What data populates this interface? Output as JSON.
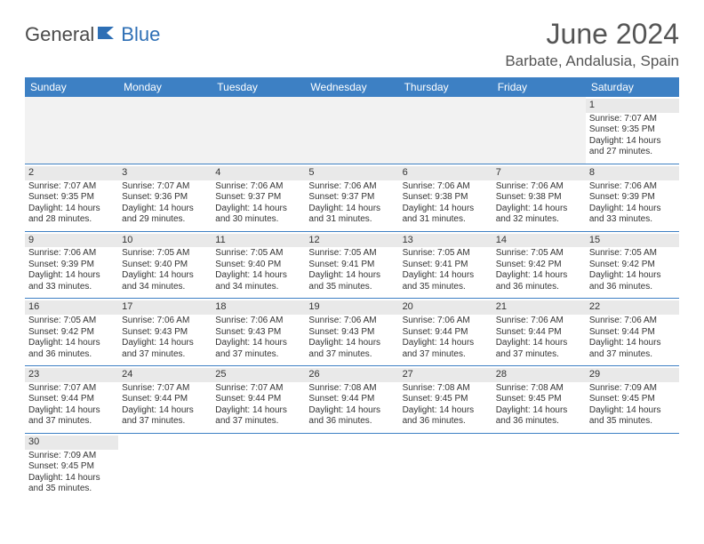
{
  "logo": {
    "part1": "General",
    "part2": "Blue"
  },
  "title": "June 2024",
  "location": "Barbate, Andalusia, Spain",
  "colors": {
    "header_bg": "#3d80c4",
    "header_fg": "#ffffff",
    "daynum_bg": "#e9e9e9",
    "border": "#3d80c4",
    "logo_gray": "#4a4a4a",
    "logo_blue": "#2e6fb5"
  },
  "day_headers": [
    "Sunday",
    "Monday",
    "Tuesday",
    "Wednesday",
    "Thursday",
    "Friday",
    "Saturday"
  ],
  "weeks": [
    [
      null,
      null,
      null,
      null,
      null,
      null,
      {
        "n": "1",
        "sr": "Sunrise: 7:07 AM",
        "ss": "Sunset: 9:35 PM",
        "d1": "Daylight: 14 hours",
        "d2": "and 27 minutes."
      }
    ],
    [
      {
        "n": "2",
        "sr": "Sunrise: 7:07 AM",
        "ss": "Sunset: 9:35 PM",
        "d1": "Daylight: 14 hours",
        "d2": "and 28 minutes."
      },
      {
        "n": "3",
        "sr": "Sunrise: 7:07 AM",
        "ss": "Sunset: 9:36 PM",
        "d1": "Daylight: 14 hours",
        "d2": "and 29 minutes."
      },
      {
        "n": "4",
        "sr": "Sunrise: 7:06 AM",
        "ss": "Sunset: 9:37 PM",
        "d1": "Daylight: 14 hours",
        "d2": "and 30 minutes."
      },
      {
        "n": "5",
        "sr": "Sunrise: 7:06 AM",
        "ss": "Sunset: 9:37 PM",
        "d1": "Daylight: 14 hours",
        "d2": "and 31 minutes."
      },
      {
        "n": "6",
        "sr": "Sunrise: 7:06 AM",
        "ss": "Sunset: 9:38 PM",
        "d1": "Daylight: 14 hours",
        "d2": "and 31 minutes."
      },
      {
        "n": "7",
        "sr": "Sunrise: 7:06 AM",
        "ss": "Sunset: 9:38 PM",
        "d1": "Daylight: 14 hours",
        "d2": "and 32 minutes."
      },
      {
        "n": "8",
        "sr": "Sunrise: 7:06 AM",
        "ss": "Sunset: 9:39 PM",
        "d1": "Daylight: 14 hours",
        "d2": "and 33 minutes."
      }
    ],
    [
      {
        "n": "9",
        "sr": "Sunrise: 7:06 AM",
        "ss": "Sunset: 9:39 PM",
        "d1": "Daylight: 14 hours",
        "d2": "and 33 minutes."
      },
      {
        "n": "10",
        "sr": "Sunrise: 7:05 AM",
        "ss": "Sunset: 9:40 PM",
        "d1": "Daylight: 14 hours",
        "d2": "and 34 minutes."
      },
      {
        "n": "11",
        "sr": "Sunrise: 7:05 AM",
        "ss": "Sunset: 9:40 PM",
        "d1": "Daylight: 14 hours",
        "d2": "and 34 minutes."
      },
      {
        "n": "12",
        "sr": "Sunrise: 7:05 AM",
        "ss": "Sunset: 9:41 PM",
        "d1": "Daylight: 14 hours",
        "d2": "and 35 minutes."
      },
      {
        "n": "13",
        "sr": "Sunrise: 7:05 AM",
        "ss": "Sunset: 9:41 PM",
        "d1": "Daylight: 14 hours",
        "d2": "and 35 minutes."
      },
      {
        "n": "14",
        "sr": "Sunrise: 7:05 AM",
        "ss": "Sunset: 9:42 PM",
        "d1": "Daylight: 14 hours",
        "d2": "and 36 minutes."
      },
      {
        "n": "15",
        "sr": "Sunrise: 7:05 AM",
        "ss": "Sunset: 9:42 PM",
        "d1": "Daylight: 14 hours",
        "d2": "and 36 minutes."
      }
    ],
    [
      {
        "n": "16",
        "sr": "Sunrise: 7:05 AM",
        "ss": "Sunset: 9:42 PM",
        "d1": "Daylight: 14 hours",
        "d2": "and 36 minutes."
      },
      {
        "n": "17",
        "sr": "Sunrise: 7:06 AM",
        "ss": "Sunset: 9:43 PM",
        "d1": "Daylight: 14 hours",
        "d2": "and 37 minutes."
      },
      {
        "n": "18",
        "sr": "Sunrise: 7:06 AM",
        "ss": "Sunset: 9:43 PM",
        "d1": "Daylight: 14 hours",
        "d2": "and 37 minutes."
      },
      {
        "n": "19",
        "sr": "Sunrise: 7:06 AM",
        "ss": "Sunset: 9:43 PM",
        "d1": "Daylight: 14 hours",
        "d2": "and 37 minutes."
      },
      {
        "n": "20",
        "sr": "Sunrise: 7:06 AM",
        "ss": "Sunset: 9:44 PM",
        "d1": "Daylight: 14 hours",
        "d2": "and 37 minutes."
      },
      {
        "n": "21",
        "sr": "Sunrise: 7:06 AM",
        "ss": "Sunset: 9:44 PM",
        "d1": "Daylight: 14 hours",
        "d2": "and 37 minutes."
      },
      {
        "n": "22",
        "sr": "Sunrise: 7:06 AM",
        "ss": "Sunset: 9:44 PM",
        "d1": "Daylight: 14 hours",
        "d2": "and 37 minutes."
      }
    ],
    [
      {
        "n": "23",
        "sr": "Sunrise: 7:07 AM",
        "ss": "Sunset: 9:44 PM",
        "d1": "Daylight: 14 hours",
        "d2": "and 37 minutes."
      },
      {
        "n": "24",
        "sr": "Sunrise: 7:07 AM",
        "ss": "Sunset: 9:44 PM",
        "d1": "Daylight: 14 hours",
        "d2": "and 37 minutes."
      },
      {
        "n": "25",
        "sr": "Sunrise: 7:07 AM",
        "ss": "Sunset: 9:44 PM",
        "d1": "Daylight: 14 hours",
        "d2": "and 37 minutes."
      },
      {
        "n": "26",
        "sr": "Sunrise: 7:08 AM",
        "ss": "Sunset: 9:44 PM",
        "d1": "Daylight: 14 hours",
        "d2": "and 36 minutes."
      },
      {
        "n": "27",
        "sr": "Sunrise: 7:08 AM",
        "ss": "Sunset: 9:45 PM",
        "d1": "Daylight: 14 hours",
        "d2": "and 36 minutes."
      },
      {
        "n": "28",
        "sr": "Sunrise: 7:08 AM",
        "ss": "Sunset: 9:45 PM",
        "d1": "Daylight: 14 hours",
        "d2": "and 36 minutes."
      },
      {
        "n": "29",
        "sr": "Sunrise: 7:09 AM",
        "ss": "Sunset: 9:45 PM",
        "d1": "Daylight: 14 hours",
        "d2": "and 35 minutes."
      }
    ],
    [
      {
        "n": "30",
        "sr": "Sunrise: 7:09 AM",
        "ss": "Sunset: 9:45 PM",
        "d1": "Daylight: 14 hours",
        "d2": "and 35 minutes."
      },
      null,
      null,
      null,
      null,
      null,
      null
    ]
  ]
}
